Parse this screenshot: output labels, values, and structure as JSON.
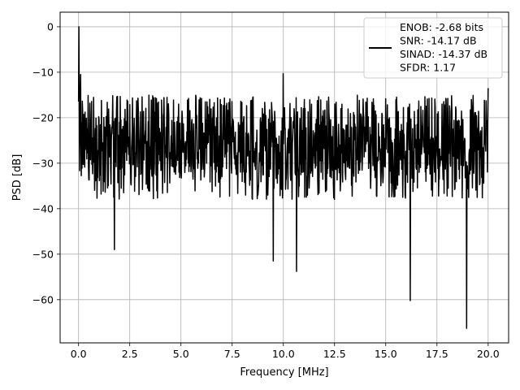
{
  "chart_data": {
    "type": "line",
    "title": "",
    "xlabel": "Frequency [MHz]",
    "ylabel": "PSD [dB]",
    "xlim": [
      -0.9,
      21.0
    ],
    "ylim": [
      -69.5,
      3.2
    ],
    "x_ticks": [
      0.0,
      2.5,
      5.0,
      7.5,
      10.0,
      12.5,
      15.0,
      17.5,
      20.0
    ],
    "x_tick_labels": [
      "0.0",
      "2.5",
      "5.0",
      "7.5",
      "10.0",
      "12.5",
      "15.0",
      "17.5",
      "20.0"
    ],
    "y_ticks": [
      0,
      -10,
      -20,
      -30,
      -40,
      -50,
      -60
    ],
    "y_tick_labels": [
      "0",
      "−10",
      "−20",
      "−30",
      "−40",
      "−50",
      "−60"
    ],
    "grid": true,
    "legend": {
      "placement": "upper right",
      "entries": [
        "ENOB: -2.68 bits",
        "SNR: -14.17 dB",
        "SINAD: -14.37 dB",
        "SFDR: 1.17"
      ]
    },
    "series": [
      {
        "color": "#000000",
        "x_range": [
          0.0,
          20.0
        ],
        "points": 1200,
        "noise_floor_db": [
          -42,
          -15
        ],
        "peaks": [
          {
            "x": 0.02,
            "y": 0.0
          },
          {
            "x": 0.1,
            "y": -10.5
          },
          {
            "x": 10.0,
            "y": -10.3
          },
          {
            "x": 20.0,
            "y": -13.5
          }
        ],
        "dips": [
          {
            "x": 1.75,
            "y": -49.0
          },
          {
            "x": 9.5,
            "y": -51.5
          },
          {
            "x": 10.65,
            "y": -53.8
          },
          {
            "x": 16.2,
            "y": -60.2
          },
          {
            "x": 18.95,
            "y": -66.3
          }
        ]
      }
    ]
  }
}
